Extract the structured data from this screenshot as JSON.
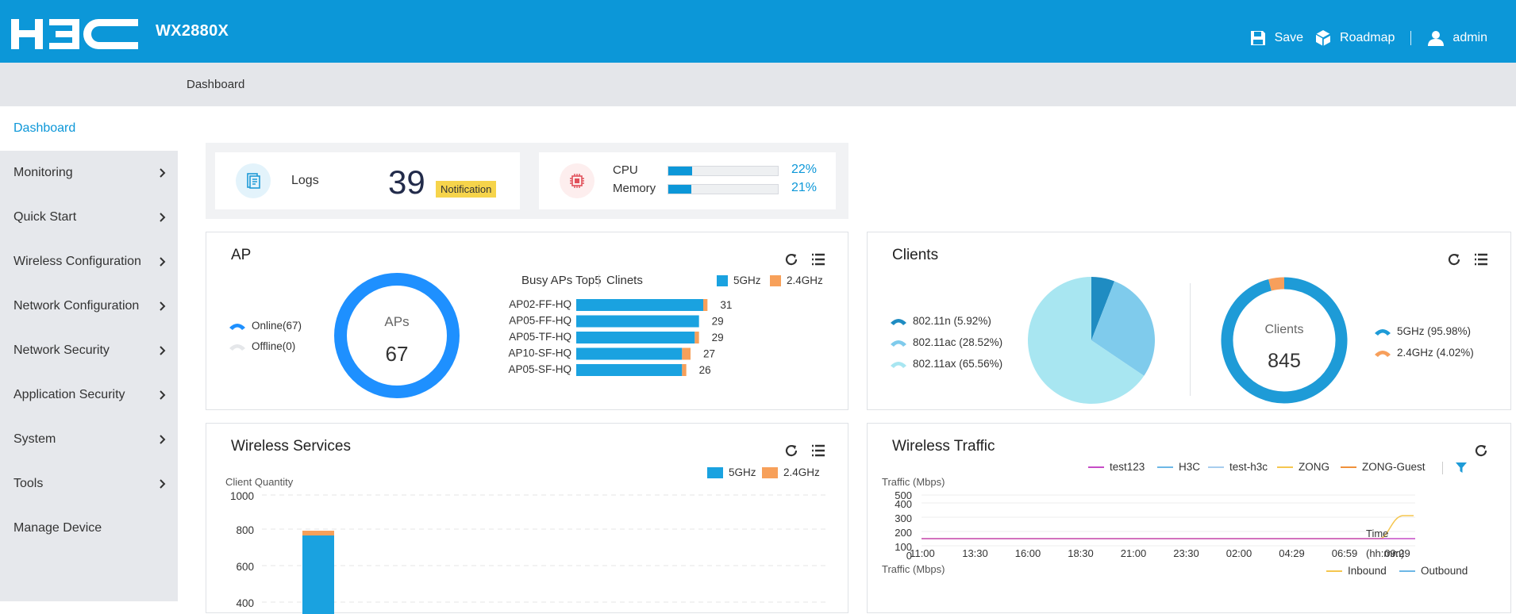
{
  "header": {
    "model": "WX2880X",
    "save_label": "Save",
    "roadmap_label": "Roadmap",
    "user_label": "admin"
  },
  "breadcrumb": "Dashboard",
  "sidebar": {
    "items": [
      {
        "label": "Dashboard"
      },
      {
        "label": "Monitoring"
      },
      {
        "label": "Quick Start"
      },
      {
        "label": "Wireless Configuration"
      },
      {
        "label": "Network Configuration"
      },
      {
        "label": "Network Security"
      },
      {
        "label": "Application Security"
      },
      {
        "label": "System"
      },
      {
        "label": "Tools"
      },
      {
        "label": "Manage Device"
      }
    ]
  },
  "summary": {
    "logs_label": "Logs",
    "logs_count": "39",
    "notification_badge": "Notification",
    "cpu_label": "CPU",
    "cpu_pct": "22%",
    "cpu_value": 22,
    "memory_label": "Memory",
    "memory_pct": "21%",
    "memory_value": 21
  },
  "ap": {
    "title": "AP",
    "online_label": "Online(67)",
    "offline_label": "Offline(0)",
    "ring_title": "APs",
    "ring_value": "67",
    "busy_title": "Busy APs Top5",
    "busy_sub": "Clinets",
    "legend_5g": "5GHz",
    "legend_24g": "2.4GHz",
    "busy": [
      {
        "name": "AP02-FF-HQ",
        "total": 31,
        "g5": 30,
        "g24": 1
      },
      {
        "name": "AP05-FF-HQ",
        "total": 29,
        "g5": 29,
        "g24": 0
      },
      {
        "name": "AP05-TF-HQ",
        "total": 29,
        "g5": 28,
        "g24": 1
      },
      {
        "name": "AP10-SF-HQ",
        "total": 27,
        "g5": 25,
        "g24": 2
      },
      {
        "name": "AP05-SF-HQ",
        "total": 26,
        "g5": 25,
        "g24": 1
      }
    ]
  },
  "clients": {
    "title": "Clients",
    "pie": [
      {
        "label": "802.11n (5.92%)",
        "value": 5.92,
        "color": "#1f8cc2"
      },
      {
        "label": "802.11ac (28.52%)",
        "value": 28.52,
        "color": "#7fcbec"
      },
      {
        "label": "802.11ax (65.56%)",
        "value": 65.56,
        "color": "#a8e6f1"
      }
    ],
    "ring_title": "Clients",
    "ring_value": "845",
    "band": [
      {
        "label": "5GHz (95.98%)",
        "value": 95.98,
        "color": "#1e9bd7"
      },
      {
        "label": "2.4GHz (4.02%)",
        "value": 4.02,
        "color": "#f79f5b"
      }
    ]
  },
  "wireless_services": {
    "title": "Wireless Services",
    "ylabel": "Client Quantity",
    "legend_5g": "5GHz",
    "legend_24g": "2.4GHz",
    "yticks": [
      "1000",
      "800",
      "600",
      "400"
    ]
  },
  "wireless_traffic": {
    "title": "Wireless Traffic",
    "ylabel": "Traffic (Mbps)",
    "series": [
      "test123",
      "H3C",
      "test-h3c",
      "ZONG",
      "ZONG-Guest"
    ],
    "series_colors": [
      "#c64cc6",
      "#6cb7e6",
      "#a7cdee",
      "#f5c64f",
      "#f0913a"
    ],
    "yticks": [
      "500",
      "400",
      "300",
      "200",
      "100",
      "0"
    ],
    "xticks": [
      "11:00",
      "13:30",
      "16:00",
      "18:30",
      "21:00",
      "23:30",
      "02:00",
      "04:29",
      "06:59",
      "09:29"
    ],
    "time_label": "Time",
    "time_unit": "(hh:mm)",
    "ylabel2": "Traffic (Mbps)",
    "inbound_label": "Inbound",
    "outbound_label": "Outbound"
  },
  "colors": {
    "primary": "#0c97d8",
    "five_ghz": "#1aa2e0",
    "two_four_ghz": "#f7a05a",
    "ap_ring": "#1e90ff"
  }
}
